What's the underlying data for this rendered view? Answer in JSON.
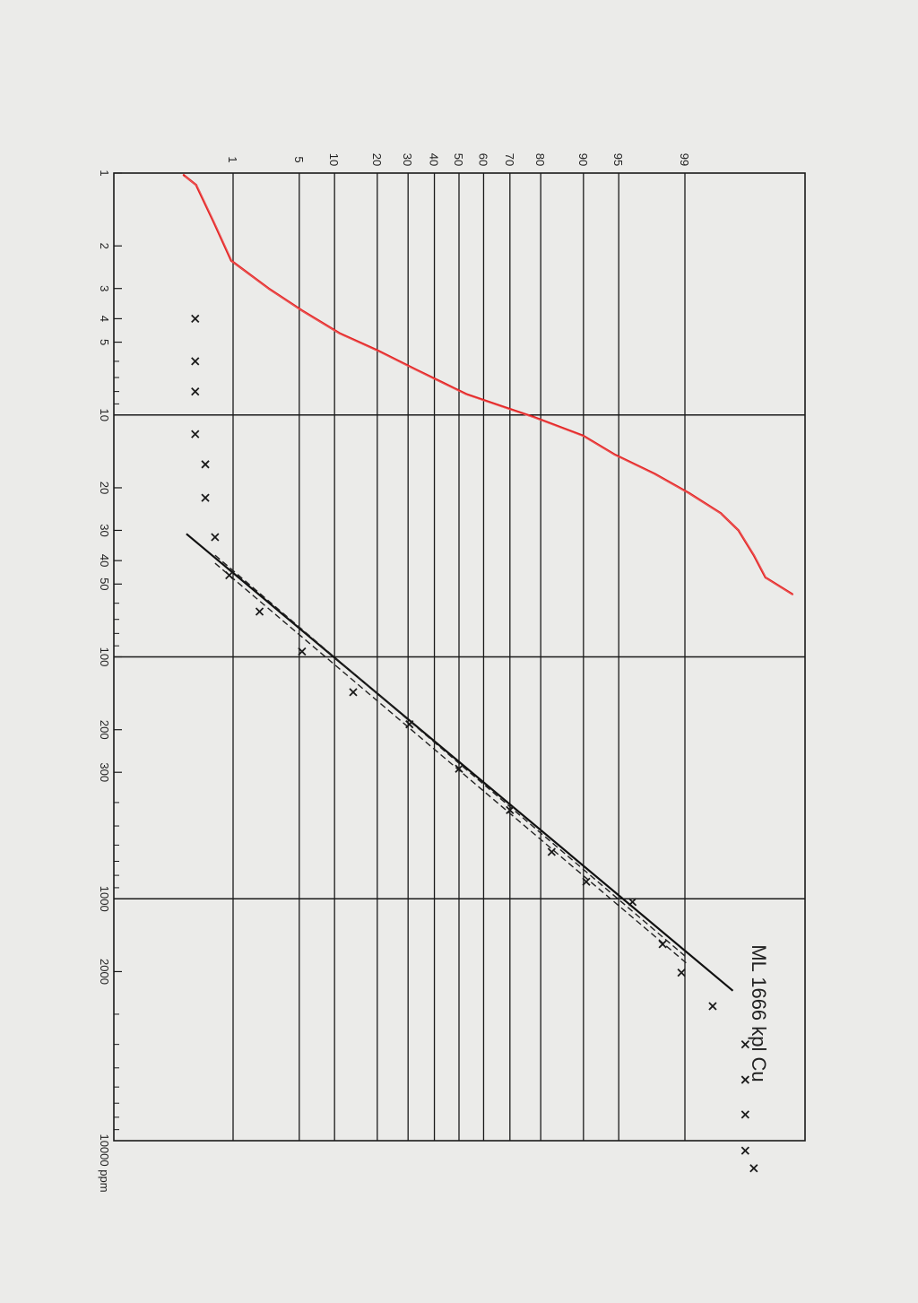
{
  "chart_data": {
    "type": "scatter",
    "title": "",
    "sample_label": "ML 1666 kpl   Cu",
    "x_axis": {
      "scale": "log",
      "range": [
        1,
        10000
      ],
      "unit_label": "10000 ppm",
      "ticks": [
        {
          "value": 1,
          "label": "1"
        },
        {
          "value": 2,
          "label": "2"
        },
        {
          "value": 3,
          "label": "3"
        },
        {
          "value": 4,
          "label": "4"
        },
        {
          "value": 5,
          "label": "5"
        },
        {
          "value": 10,
          "label": "10"
        },
        {
          "value": 20,
          "label": "20"
        },
        {
          "value": 30,
          "label": "30"
        },
        {
          "value": 40,
          "label": "40"
        },
        {
          "value": 50,
          "label": "50"
        },
        {
          "value": 100,
          "label": "100"
        },
        {
          "value": 200,
          "label": "200"
        },
        {
          "value": 300,
          "label": "300"
        },
        {
          "value": 1000,
          "label": "1000"
        },
        {
          "value": 2000,
          "label": "2000"
        }
      ],
      "minor_ticks": [
        6,
        7,
        8,
        9,
        60,
        70,
        80,
        90,
        400,
        500,
        600,
        700,
        800,
        900,
        3000,
        4000,
        5000,
        6000,
        7000,
        8000,
        9000
      ]
    },
    "y_axis": {
      "scale": "probability",
      "unit": "cumulative %",
      "range": [
        0.2,
        99.8
      ],
      "ticks": [
        1,
        5,
        10,
        20,
        30,
        40,
        50,
        60,
        70,
        80,
        90,
        95,
        99
      ]
    },
    "grid": true,
    "series": [
      {
        "marker": "x",
        "color": "#1a1a1a",
        "points": [
          {
            "x": 4,
            "y": 0.33
          },
          {
            "x": 6,
            "y": 0.33
          },
          {
            "x": 8,
            "y": 0.33
          },
          {
            "x": 12,
            "y": 0.33
          },
          {
            "x": 16,
            "y": 0.45
          },
          {
            "x": 22,
            "y": 0.45
          },
          {
            "x": 32,
            "y": 0.6
          },
          {
            "x": 46,
            "y": 0.9
          },
          {
            "x": 65,
            "y": 2
          },
          {
            "x": 95,
            "y": 5.3
          },
          {
            "x": 140,
            "y": 13.8
          },
          {
            "x": 190,
            "y": 30.5
          },
          {
            "x": 290,
            "y": 50
          },
          {
            "x": 430,
            "y": 70
          },
          {
            "x": 640,
            "y": 83
          },
          {
            "x": 850,
            "y": 90.5
          },
          {
            "x": 1030,
            "y": 96.3
          },
          {
            "x": 1540,
            "y": 98.2
          },
          {
            "x": 2020,
            "y": 98.9
          },
          {
            "x": 2780,
            "y": 99.55
          },
          {
            "x": 4000,
            "y": 99.84
          },
          {
            "x": 5600,
            "y": 99.84
          },
          {
            "x": 7800,
            "y": 99.84
          },
          {
            "x": 11000,
            "y": 99.84
          },
          {
            "x": 13000,
            "y": 99.88
          }
        ]
      },
      {
        "name": "fit",
        "style": "solid",
        "color": "#111111",
        "points": [
          {
            "x": 31,
            "y": 0.25
          },
          {
            "x": 2400,
            "y": 99.76
          }
        ]
      },
      {
        "name": "upper",
        "style": "dashed",
        "color": "#222222",
        "points": [
          {
            "x": 38,
            "y": 0.6
          },
          {
            "x": 1750,
            "y": 99.05
          }
        ]
      },
      {
        "name": "lower",
        "style": "dashed",
        "color": "#222222",
        "points": [
          {
            "x": 41,
            "y": 0.6
          },
          {
            "x": 1850,
            "y": 99.05
          }
        ]
      },
      {
        "name": "red-curve",
        "style": "hand-drawn",
        "color": "#e32222",
        "points": [
          {
            "x": 1.02,
            "y": 0.23
          },
          {
            "x": 1.12,
            "y": 0.34
          },
          {
            "x": 1.6,
            "y": 0.58
          },
          {
            "x": 2.3,
            "y": 0.95
          },
          {
            "x": 3.0,
            "y": 2.5
          },
          {
            "x": 3.7,
            "y": 5.3
          },
          {
            "x": 4.6,
            "y": 11
          },
          {
            "x": 5.4,
            "y": 20
          },
          {
            "x": 6.5,
            "y": 33
          },
          {
            "x": 7.4,
            "y": 44
          },
          {
            "x": 8.2,
            "y": 53
          },
          {
            "x": 9.2,
            "y": 67
          },
          {
            "x": 10.2,
            "y": 78
          },
          {
            "x": 12.2,
            "y": 90
          },
          {
            "x": 14.6,
            "y": 94.6
          },
          {
            "x": 17.5,
            "y": 97.8
          },
          {
            "x": 21,
            "y": 99.1
          },
          {
            "x": 25.5,
            "y": 99.65
          },
          {
            "x": 30,
            "y": 99.8
          },
          {
            "x": 38,
            "y": 99.88
          },
          {
            "x": 47,
            "y": 99.92
          },
          {
            "x": 55,
            "y": 99.97
          }
        ]
      }
    ]
  }
}
